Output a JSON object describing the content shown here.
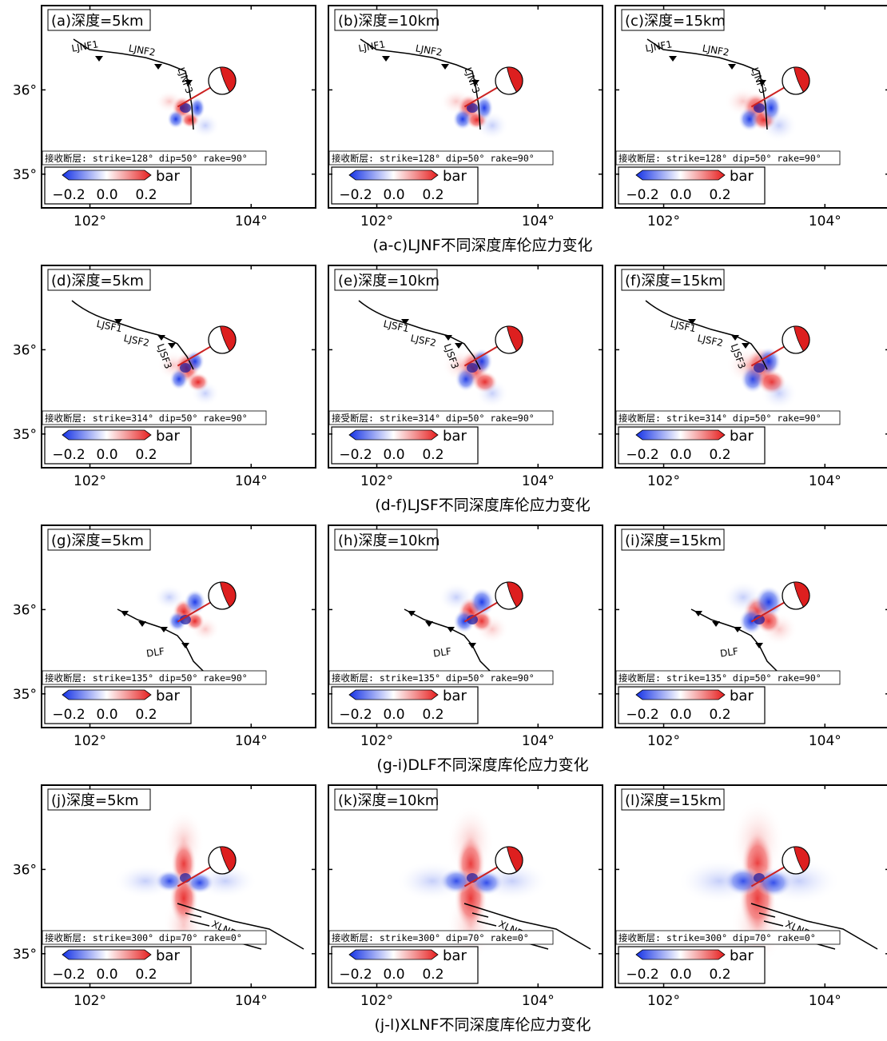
{
  "colorbar": {
    "unit": "bar",
    "ticks": [
      "−0.2",
      "0.0",
      "0.2"
    ],
    "range": [
      -0.2,
      0.2
    ],
    "colors": {
      "negative": "#1432e6",
      "zero": "#ffffff",
      "positive": "#e61e1e"
    }
  },
  "axes": {
    "lat_labels": [
      "36°",
      "35°"
    ],
    "lon_labels": [
      "102°",
      "104°"
    ]
  },
  "rows": [
    {
      "caption": "(a-c)LJNF不同深度库伦应力变化",
      "receiver": "strike=128° dip=50° rake=90°",
      "fault_type": "LJNF",
      "fault_labels": [
        "LJNF1",
        "LJNF2",
        "LJNF3"
      ],
      "panels": [
        {
          "title": "(a)深度=5km",
          "receiver_prefix": "接收断层:"
        },
        {
          "title": "(b)深度=10km",
          "receiver_prefix": "接收断层:"
        },
        {
          "title": "(c)深度=15km",
          "receiver_prefix": "接收断层:"
        }
      ]
    },
    {
      "caption": "(d-f)LJSF不同深度库伦应力变化",
      "receiver": "strike=314° dip=50° rake=90°",
      "fault_type": "LJSF",
      "fault_labels": [
        "LJSF1",
        "LJSF2",
        "LJSF3"
      ],
      "panels": [
        {
          "title": "(d)深度=5km",
          "receiver_prefix": "接收断层:"
        },
        {
          "title": "(e)深度=10km",
          "receiver_prefix": "接受断层:"
        },
        {
          "title": "(f)深度=15km",
          "receiver_prefix": "接收断层:"
        }
      ]
    },
    {
      "caption": "(g-i)DLF不同深度库伦应力变化",
      "receiver": "strike=135° dip=50° rake=90°",
      "fault_type": "DLF",
      "fault_labels": [
        "DLF"
      ],
      "panels": [
        {
          "title": "(g)深度=5km",
          "receiver_prefix": "接收断层:"
        },
        {
          "title": "(h)深度=10km",
          "receiver_prefix": "接收断层:"
        },
        {
          "title": "(i)深度=15km",
          "receiver_prefix": "接收断层:"
        }
      ]
    },
    {
      "caption": "(j-l)XLNF不同深度库伦应力变化",
      "receiver": "strike=300° dip=70° rake=0°",
      "fault_type": "XLNF",
      "fault_labels": [
        "XLNF"
      ],
      "panels": [
        {
          "title": "(j)深度=5km",
          "receiver_prefix": "接收断层:"
        },
        {
          "title": "(k)深度=10km",
          "receiver_prefix": "接收断层:"
        },
        {
          "title": "(l)深度=15km",
          "receiver_prefix": "接收断层:"
        }
      ]
    }
  ]
}
